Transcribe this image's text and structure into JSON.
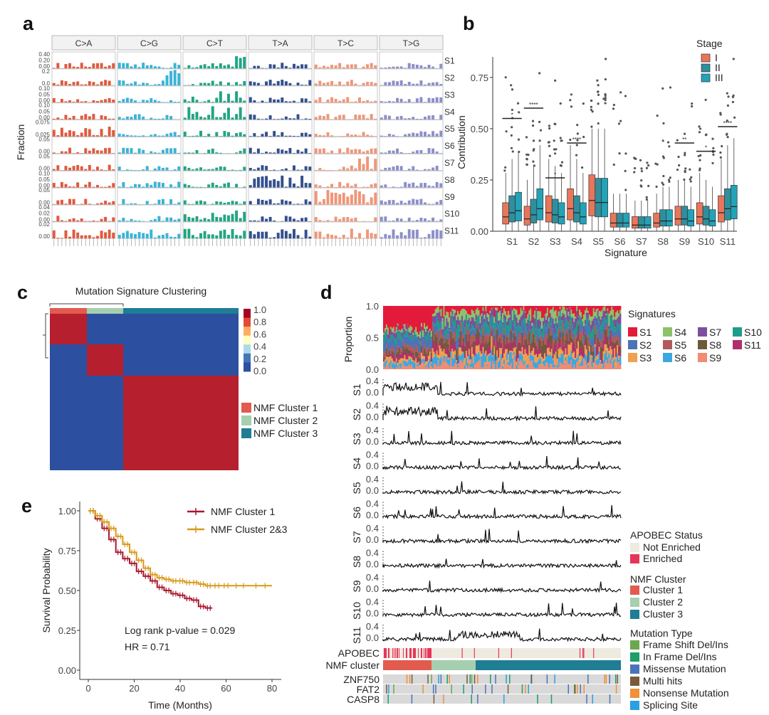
{
  "panels": {
    "a": {
      "label": "a",
      "ylabel": "Fraction",
      "facets": [
        "C>A",
        "C>G",
        "C>T",
        "T>A",
        "T>C",
        "T>G"
      ],
      "facet_colors": [
        "#e05a3f",
        "#3bb3d6",
        "#22a584",
        "#33508f",
        "#f09678",
        "#8c8fc9"
      ],
      "signatures": [
        "S1",
        "S2",
        "S3",
        "S4",
        "S5",
        "S6",
        "S7",
        "S8",
        "S9",
        "S10",
        "S11"
      ],
      "row_ticks": [
        [
          "0.40",
          "0.20",
          "0.00"
        ],
        [
          "0.2",
          "0.0"
        ],
        [
          "0.10",
          "0.05",
          "0.00"
        ],
        [
          "0.10",
          "0.05",
          "0.00"
        ],
        [
          "0.075",
          "0.025"
        ],
        [
          "0.05",
          "0.00"
        ],
        [
          "0.05",
          "0.00"
        ],
        [
          "0.10",
          "0.05",
          "0.00"
        ],
        [
          "0.05",
          "0.00"
        ],
        [
          "0.04",
          "0.02",
          "0.00"
        ],
        [
          "0.02",
          "0.00"
        ]
      ]
    },
    "b": {
      "label": "b",
      "legend_title": "Stage",
      "stages": [
        "I",
        "II",
        "III"
      ],
      "stage_colors": [
        "#e8765a",
        "#2f8f9e",
        "#22a3b8"
      ],
      "ylabel": "Contribution",
      "xlabel": "Signature"
    },
    "c": {
      "label": "c",
      "title": "Mutation Signature Clustering",
      "colorbar_ticks": [
        "1.0",
        "0.8",
        "0.6",
        "0.4",
        "0.2",
        "0.0"
      ],
      "legend": [
        {
          "name": "NMF Cluster 1",
          "color": "#e15b4f"
        },
        {
          "name": "NMF Cluster 2",
          "color": "#a6cfb0"
        },
        {
          "name": "NMF Cluster 3",
          "color": "#1f7d94"
        }
      ]
    },
    "d": {
      "label": "d",
      "proportion_label": "Proportion",
      "proportion_ticks": [
        "1.0",
        "0.5",
        "0.0"
      ],
      "track_ticks": [
        "0.4",
        "0.0"
      ],
      "signatures_title": "Signatures",
      "signatures_legend": [
        {
          "name": "S1",
          "color": "#e41a3a"
        },
        {
          "name": "S4",
          "color": "#8dc26b"
        },
        {
          "name": "S7",
          "color": "#7b4f9d"
        },
        {
          "name": "S10",
          "color": "#1f9d8a"
        },
        {
          "name": "S2",
          "color": "#4a74b8"
        },
        {
          "name": "S5",
          "color": "#b05a5a"
        },
        {
          "name": "S8",
          "color": "#6e5a3a"
        },
        {
          "name": "S11",
          "color": "#b0306a"
        },
        {
          "name": "S3",
          "color": "#f0a050"
        },
        {
          "name": "S6",
          "color": "#3ba8e0"
        },
        {
          "name": "S9",
          "color": "#f08c72"
        }
      ],
      "apobec_title": "APOBEC Status",
      "apobec_legend": [
        {
          "name": "Not Enriched",
          "color": "#efeae0"
        },
        {
          "name": "Enriched",
          "color": "#e8345a"
        }
      ],
      "nmf_title": "NMF Cluster",
      "nmf_legend": [
        {
          "name": "Cluster 1",
          "color": "#e15b4f"
        },
        {
          "name": "Cluster 2",
          "color": "#a6cfb0"
        },
        {
          "name": "Cluster 3",
          "color": "#1f7d94"
        }
      ],
      "mut_title": "Mutation Type",
      "mut_legend": [
        {
          "name": "Frame Shift Del/Ins",
          "color": "#6aa84f"
        },
        {
          "name": "In Frame Del/Ins",
          "color": "#1f9d6a"
        },
        {
          "name": "Missense Mutation",
          "color": "#4a74b8"
        },
        {
          "name": "Multi hits",
          "color": "#7a5a3a"
        },
        {
          "name": "Nonsense Mutation",
          "color": "#f0903a"
        },
        {
          "name": "Splicing Site",
          "color": "#2aa0e0"
        }
      ],
      "row_labels": {
        "apobec": "APOBEC",
        "nmf": "NMF cluster",
        "genes": [
          "ZNF750",
          "FAT2",
          "CASP8"
        ]
      }
    },
    "e": {
      "label": "e",
      "ylabel": "Survival Probability",
      "xlabel": "Time (Months)",
      "yticks": [
        "1.00",
        "0.75",
        "0.50",
        "0.25",
        "0.00"
      ],
      "xticks": [
        "0",
        "20",
        "40",
        "60",
        "80"
      ],
      "legend": [
        {
          "name": "NMF Cluster 1",
          "color": "#a8182f"
        },
        {
          "name": "NMF Cluster 2&3",
          "color": "#d89a1a"
        }
      ],
      "annotation1": "Log rank p-value = 0.029",
      "annotation2": "HR = 0.71"
    }
  },
  "chart_data": [
    {
      "panel": "b",
      "type": "box",
      "title": "",
      "xlabel": "Signature",
      "ylabel": "Contribution",
      "ylim": [
        0,
        0.85
      ],
      "yticks": [
        0.0,
        0.25,
        0.5,
        0.75
      ],
      "categories": [
        "S1",
        "S2",
        "S3",
        "S4",
        "S5",
        "S6",
        "S7",
        "S8",
        "S9",
        "S10",
        "S11"
      ],
      "series": [
        {
          "name": "I",
          "medians": [
            0.07,
            0.06,
            0.09,
            0.11,
            0.15,
            0.04,
            0.03,
            0.04,
            0.06,
            0.07,
            0.09
          ]
        },
        {
          "name": "II",
          "medians": [
            0.09,
            0.08,
            0.08,
            0.09,
            0.14,
            0.04,
            0.03,
            0.05,
            0.06,
            0.06,
            0.11
          ]
        },
        {
          "name": "III",
          "medians": [
            0.1,
            0.11,
            0.07,
            0.07,
            0.14,
            0.04,
            0.03,
            0.05,
            0.05,
            0.05,
            0.12
          ]
        }
      ],
      "significance": [
        {
          "category": "S1",
          "label": "*",
          "y": 0.55
        },
        {
          "category": "S2",
          "label": "****",
          "y": 0.6
        },
        {
          "category": "S3",
          "label": "*",
          "y": 0.26
        },
        {
          "category": "S4",
          "label": "****",
          "y": 0.43
        },
        {
          "category": "S9",
          "label": "**",
          "y": 0.43
        },
        {
          "category": "S10",
          "label": "*",
          "y": 0.39
        },
        {
          "category": "S11",
          "label": "****",
          "y": 0.51
        }
      ]
    },
    {
      "panel": "e",
      "type": "line",
      "xlabel": "Time (Months)",
      "ylabel": "Survival Probability",
      "xlim": [
        0,
        80
      ],
      "ylim": [
        0,
        1
      ],
      "series": [
        {
          "name": "NMF Cluster 1",
          "x": [
            0,
            3,
            6,
            9,
            12,
            15,
            18,
            21,
            24,
            27,
            30,
            33,
            36,
            39,
            42,
            45,
            48,
            51,
            54
          ],
          "y": [
            1.0,
            0.95,
            0.89,
            0.82,
            0.74,
            0.7,
            0.67,
            0.62,
            0.59,
            0.56,
            0.52,
            0.5,
            0.48,
            0.47,
            0.45,
            0.44,
            0.4,
            0.39,
            0.39
          ]
        },
        {
          "name": "NMF Cluster 2&3",
          "x": [
            0,
            3,
            6,
            9,
            12,
            15,
            18,
            21,
            24,
            27,
            30,
            33,
            36,
            39,
            42,
            45,
            48,
            51,
            54,
            58,
            62,
            70,
            80
          ],
          "y": [
            1.0,
            0.97,
            0.93,
            0.89,
            0.84,
            0.79,
            0.74,
            0.69,
            0.64,
            0.6,
            0.58,
            0.57,
            0.56,
            0.56,
            0.55,
            0.55,
            0.54,
            0.53,
            0.53,
            0.53,
            0.53,
            0.53,
            0.53
          ]
        }
      ]
    }
  ]
}
